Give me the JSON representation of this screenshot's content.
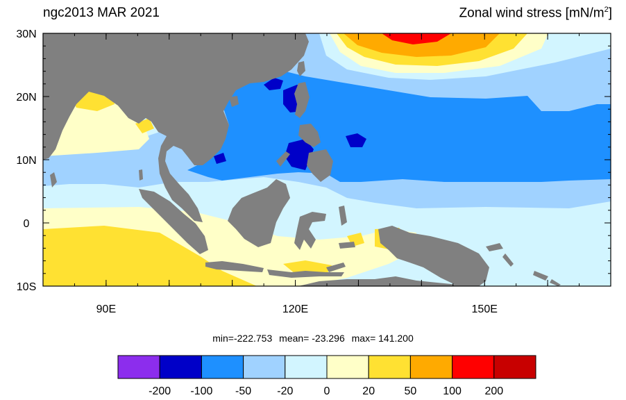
{
  "header": {
    "left_title": "ngc2013 MAR 2021",
    "right_title_main": "Zonal wind stress [mN/m",
    "right_title_sup": "2",
    "right_title_end": "]"
  },
  "map": {
    "lon_range": [
      80,
      170
    ],
    "lat_range": [
      -10,
      30
    ],
    "lat_ticks": [
      {
        "value": 30,
        "label": "30N"
      },
      {
        "value": 20,
        "label": "20N"
      },
      {
        "value": 10,
        "label": "10N"
      },
      {
        "value": 0,
        "label": "0"
      },
      {
        "value": -10,
        "label": "10S"
      }
    ],
    "lon_ticks": [
      {
        "value": 90,
        "label": "90E"
      },
      {
        "value": 120,
        "label": "120E"
      },
      {
        "value": 150,
        "label": "150E"
      }
    ],
    "land_color": "#808080"
  },
  "stats": {
    "min_text": "min=-222.753",
    "mean_text": "mean= -23.296",
    "max_text": "max= 141.200"
  },
  "colorbar": {
    "colors": [
      "#8c2ded",
      "#0000c8",
      "#1e90ff",
      "#a0d2ff",
      "#d2f5ff",
      "#ffffc8",
      "#ffe132",
      "#ffaa00",
      "#ff0000",
      "#c80000"
    ],
    "labels": [
      "-200",
      "-100",
      "-50",
      "-20",
      "0",
      "20",
      "50",
      "100",
      "200"
    ]
  }
}
